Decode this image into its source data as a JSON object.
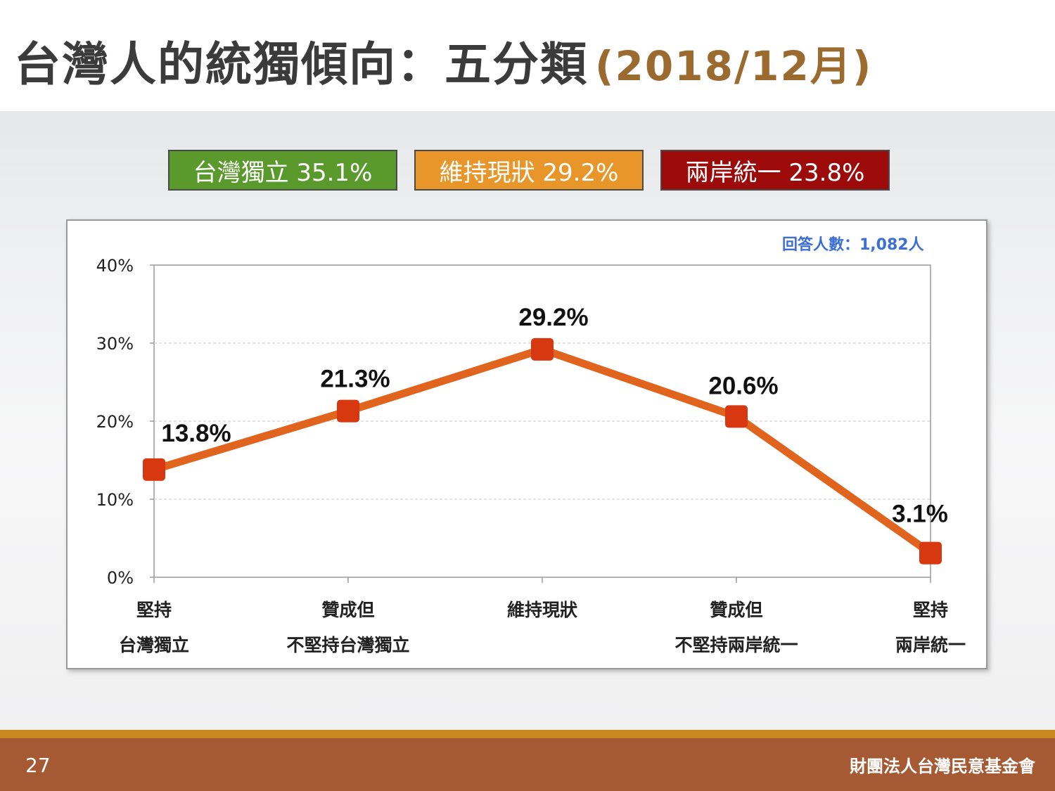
{
  "slide": {
    "title_main": "台灣人的統獨傾向：五分類",
    "title_date": "(2018/12月)",
    "page_number": "27",
    "organization": "財團法人台灣民意基金會"
  },
  "legend": [
    {
      "label": "台灣獨立 35.1%",
      "color": "#5a9a2c"
    },
    {
      "label": "維持現狀 29.2%",
      "color": "#e8962a"
    },
    {
      "label": "兩岸統一 23.8%",
      "color": "#9c0a0a"
    }
  ],
  "chart_data": {
    "type": "line",
    "note": "回答人數：1,082人",
    "categories": [
      [
        "堅持",
        "台灣獨立"
      ],
      [
        "贊成但",
        "不堅持台灣獨立"
      ],
      [
        "維持現狀"
      ],
      [
        "贊成但",
        "不堅持兩岸統一"
      ],
      [
        "堅持",
        "兩岸統一"
      ]
    ],
    "values": [
      13.8,
      21.3,
      29.2,
      20.6,
      3.1
    ],
    "data_labels": [
      "13.8%",
      "21.3%",
      "29.2%",
      "20.6%",
      "3.1%"
    ],
    "yticks": [
      "0%",
      "10%",
      "20%",
      "30%",
      "40%"
    ],
    "ylim": [
      0,
      40
    ],
    "line_color": "#e0631e",
    "marker_color": "#d8380f",
    "grid": true
  }
}
